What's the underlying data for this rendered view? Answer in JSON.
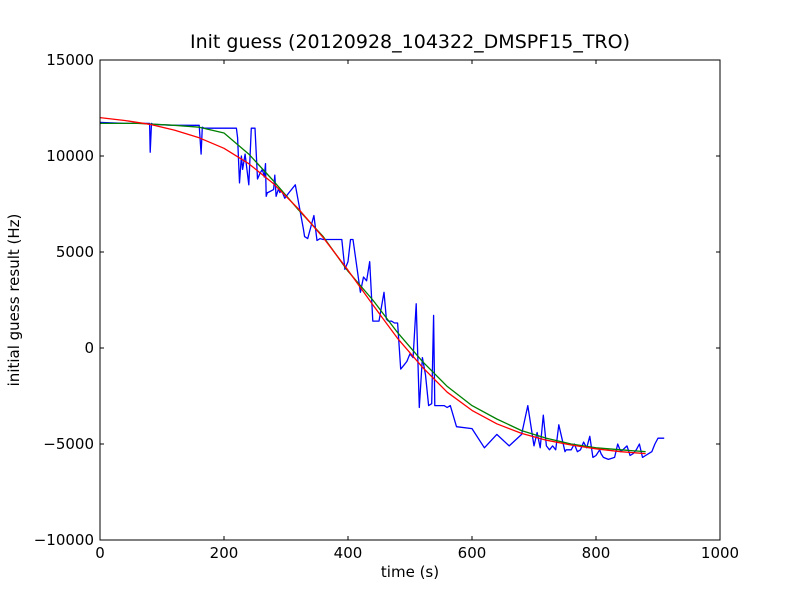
{
  "chart_data": {
    "type": "line",
    "title": "Init guess (20120928_104322_DMSPF15_TRO)",
    "xlabel": "time (s)",
    "ylabel": "initial guess result (Hz)",
    "xlim": [
      0,
      1000
    ],
    "ylim": [
      -10000,
      15000
    ],
    "xticks": [
      0,
      200,
      400,
      600,
      800,
      1000
    ],
    "yticks": [
      -10000,
      -5000,
      0,
      5000,
      10000,
      15000
    ],
    "xtick_labels": [
      "0",
      "200",
      "400",
      "600",
      "800",
      "1000"
    ],
    "ytick_labels": [
      "−10000",
      "−5000",
      "0",
      "5000",
      "10000",
      "15000"
    ],
    "grid": false,
    "legend": "none",
    "series": [
      {
        "color": "#0000ff",
        "x": [
          0,
          40,
          80,
          81,
          83,
          85,
          120,
          160,
          163,
          165,
          168,
          180,
          220,
          222,
          225,
          228,
          230,
          234,
          240,
          244,
          250,
          254,
          258,
          262,
          265,
          267,
          268,
          270,
          271,
          274,
          280,
          282,
          284,
          288,
          290,
          293,
          298,
          305,
          315,
          328,
          330,
          335,
          340,
          345,
          350,
          355,
          360,
          390,
          395,
          400,
          404,
          408,
          420,
          425,
          430,
          435,
          440,
          450,
          458,
          462,
          465,
          470,
          475,
          480,
          485,
          490,
          495,
          500,
          505,
          510,
          515,
          520,
          525,
          530,
          535,
          538,
          540,
          545,
          550,
          555,
          560,
          565,
          575,
          600,
          620,
          640,
          660,
          680,
          690,
          700,
          705,
          710,
          715,
          720,
          725,
          730,
          735,
          740,
          750,
          752,
          755,
          760,
          765,
          770,
          775,
          780,
          785,
          790,
          795,
          800,
          806,
          808,
          812,
          820,
          830,
          835,
          840,
          850,
          855,
          860,
          865,
          870,
          875,
          880,
          885,
          890,
          895,
          900,
          905,
          910
        ],
        "y": [
          11750,
          11700,
          11700,
          10200,
          11700,
          11650,
          11600,
          11600,
          10100,
          11500,
          11450,
          11450,
          11450,
          10950,
          8600,
          10000,
          9300,
          10100,
          8500,
          11450,
          11450,
          8800,
          9100,
          9300,
          8900,
          9600,
          7900,
          8100,
          8100,
          8150,
          8250,
          9000,
          7900,
          8300,
          8100,
          8200,
          7800,
          8100,
          8500,
          6200,
          5800,
          5700,
          6300,
          6900,
          5600,
          5700,
          5650,
          5650,
          4100,
          4500,
          5650,
          5650,
          2900,
          3700,
          3500,
          4500,
          1400,
          1400,
          2900,
          1500,
          1400,
          1400,
          1300,
          1300,
          -1100,
          -900,
          -700,
          -300,
          -500,
          2300,
          -3100,
          -500,
          -1400,
          -3000,
          -2900,
          1700,
          -3000,
          -3000,
          -3000,
          -3000,
          -3100,
          -3000,
          -4100,
          -4200,
          -5200,
          -4500,
          -5100,
          -4500,
          -3000,
          -5100,
          -4400,
          -5200,
          -3500,
          -5100,
          -5300,
          -5100,
          -5300,
          -4000,
          -5400,
          -5300,
          -5300,
          -5300,
          -5000,
          -5400,
          -5300,
          -4900,
          -5200,
          -4600,
          -5700,
          -5600,
          -5300,
          -5500,
          -5700,
          -5800,
          -5700,
          -5000,
          -5400,
          -5100,
          -5600,
          -5500,
          -5300,
          -5000,
          -5700,
          -5600,
          -5500,
          -5400,
          -5000,
          -4700,
          -4700,
          -4700
        ],
        "x_trimmed": true
      },
      {
        "color": "#008000",
        "x": [
          0,
          60,
          120,
          160,
          200,
          240,
          280,
          320,
          360,
          400,
          440,
          480,
          520,
          560,
          600,
          640,
          680,
          720,
          760,
          800,
          840,
          880
        ],
        "y": [
          11700,
          11700,
          11600,
          11500,
          11200,
          10100,
          8700,
          7200,
          5800,
          4000,
          2500,
          800,
          -700,
          -2000,
          -3000,
          -3700,
          -4300,
          -4700,
          -5000,
          -5200,
          -5300,
          -5400
        ]
      },
      {
        "color": "#ff0000",
        "x": [
          0,
          40,
          80,
          120,
          160,
          200,
          240,
          280,
          320,
          360,
          400,
          440,
          480,
          520,
          560,
          600,
          640,
          680,
          720,
          760,
          800,
          840,
          880
        ],
        "y": [
          12000,
          11850,
          11650,
          11350,
          10950,
          10400,
          9600,
          8550,
          7250,
          5750,
          4050,
          2250,
          500,
          -1000,
          -2300,
          -3250,
          -3950,
          -4450,
          -4800,
          -5050,
          -5250,
          -5400,
          -5500
        ]
      }
    ]
  }
}
